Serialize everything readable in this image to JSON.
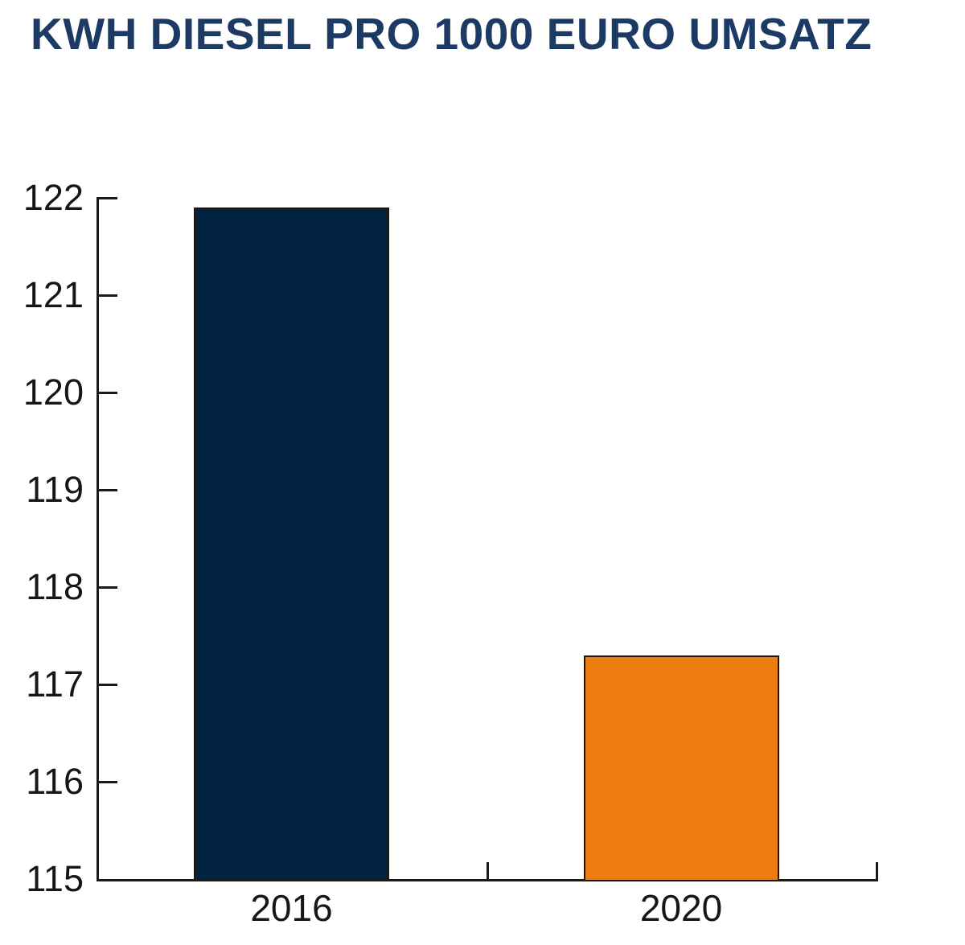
{
  "chart_data": {
    "type": "bar",
    "title": "KWH DIESEL PRO 1000 EURO UMSATZ",
    "categories": [
      "2016",
      "2020"
    ],
    "values": [
      121.9,
      117.3
    ],
    "ylim": [
      115,
      122
    ],
    "y_ticks": [
      115,
      116,
      117,
      118,
      119,
      120,
      121,
      122
    ],
    "xlabel": "",
    "ylabel": "",
    "grid": false,
    "legend": "none",
    "bar_colors": [
      "#02233f",
      "#ec7c10"
    ],
    "colors": {
      "title": "#1c3a64",
      "axis": "#1a1a1a",
      "tick_label": "#161616",
      "bar_outline": "#241708",
      "background": "#ffffff"
    }
  }
}
